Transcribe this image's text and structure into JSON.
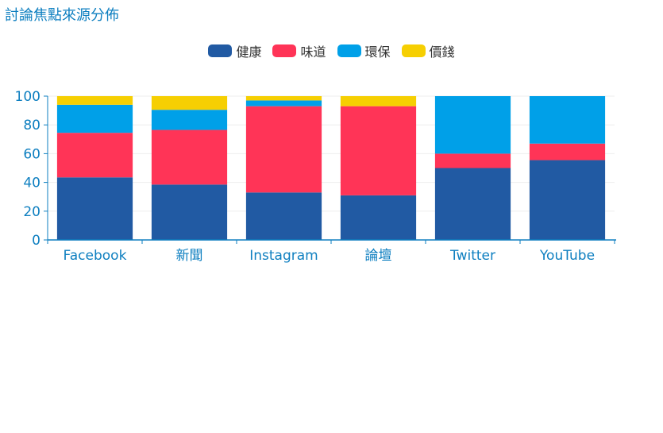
{
  "chart_data": {
    "type": "bar",
    "stacked": true,
    "title": "討論焦點來源分佈",
    "categories": [
      "Facebook",
      "新聞",
      "Instagram",
      "論壇",
      "Twitter",
      "YouTube"
    ],
    "series": [
      {
        "name": "健康",
        "color": "#215aa3",
        "values": [
          43.5,
          38.5,
          33,
          31,
          50,
          55.5
        ]
      },
      {
        "name": "味道",
        "color": "#ff3457",
        "values": [
          31,
          38,
          60,
          62,
          10,
          11.5
        ]
      },
      {
        "name": "環保",
        "color": "#00a0e8",
        "values": [
          19.5,
          14,
          4,
          0,
          40,
          33
        ]
      },
      {
        "name": "價錢",
        "color": "#f6cf02",
        "values": [
          6,
          9.5,
          3,
          7,
          0,
          0
        ]
      }
    ],
    "yticks": [
      "0",
      "20",
      "40",
      "60",
      "80",
      "100"
    ],
    "ylim": [
      0,
      100
    ],
    "axis_color": "#0e7fc0",
    "grid_color": "#eeeeee",
    "legend_position": "top-center"
  }
}
